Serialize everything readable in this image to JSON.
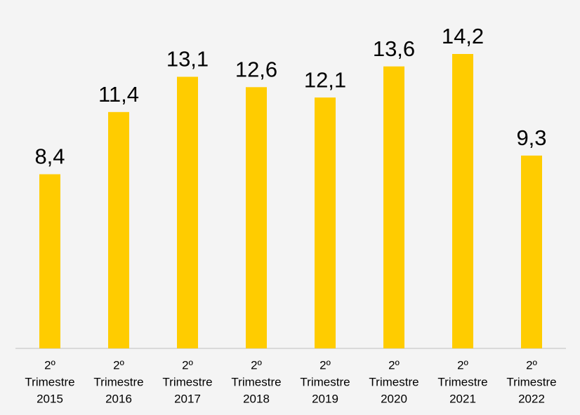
{
  "chart_data": {
    "type": "bar",
    "categories": [
      [
        "2º",
        "Trimestre",
        "2015"
      ],
      [
        "2º",
        "Trimestre",
        "2016"
      ],
      [
        "2º",
        "Trimestre",
        "2017"
      ],
      [
        "2º",
        "Trimestre",
        "2018"
      ],
      [
        "2º",
        "Trimestre",
        "2019"
      ],
      [
        "2º",
        "Trimestre",
        "2020"
      ],
      [
        "2º",
        "Trimestre",
        "2021"
      ],
      [
        "2º",
        "Trimestre",
        "2022"
      ]
    ],
    "values": [
      8.4,
      11.4,
      13.1,
      12.6,
      12.1,
      13.6,
      14.2,
      9.3
    ],
    "value_labels": [
      "8,4",
      "11,4",
      "13,1",
      "12,6",
      "12,1",
      "13,6",
      "14,2",
      "9,3"
    ],
    "color": "#ffcc00"
  }
}
